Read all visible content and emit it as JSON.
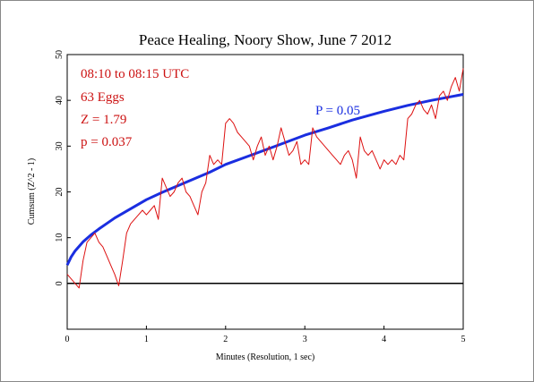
{
  "chart_data": {
    "type": "line",
    "title": "Peace Healing, Noory Show, June 7 2012",
    "xlabel": "Minutes (Resolution, 1 sec)",
    "ylabel": "Cumsum (Z^2 - 1)",
    "xlim": [
      0,
      5
    ],
    "ylim": [
      -10,
      50
    ],
    "xticks": [
      0,
      1,
      2,
      3,
      4,
      5
    ],
    "xtick_labels": [
      "0",
      "1",
      "2",
      "3",
      "4",
      "5"
    ],
    "yticks": [
      0,
      10,
      20,
      30,
      40,
      50
    ],
    "ytick_labels": [
      "0",
      "10",
      "20",
      "30",
      "40",
      "50"
    ],
    "grid": false,
    "annotations": [
      {
        "text": "08:10 to 08:15 UTC"
      },
      {
        "text": "63 Eggs"
      },
      {
        "text": "Z = 1.79"
      },
      {
        "text": "p = 0.037"
      }
    ],
    "colors": {
      "cumsum": "#dd1111",
      "envelope": "#1a2ee0",
      "baseline": "#000000",
      "annotation_text": "#cc1111"
    },
    "series": [
      {
        "name": "",
        "role": "cumsum",
        "x": [
          0,
          0.05,
          0.1,
          0.15,
          0.2,
          0.25,
          0.3,
          0.35,
          0.4,
          0.45,
          0.5,
          0.55,
          0.6,
          0.65,
          0.7,
          0.75,
          0.8,
          0.85,
          0.9,
          0.95,
          1.0,
          1.05,
          1.1,
          1.15,
          1.2,
          1.25,
          1.3,
          1.35,
          1.4,
          1.45,
          1.5,
          1.55,
          1.6,
          1.65,
          1.7,
          1.75,
          1.8,
          1.85,
          1.9,
          1.95,
          2.0,
          2.05,
          2.1,
          2.15,
          2.2,
          2.25,
          2.3,
          2.35,
          2.4,
          2.45,
          2.5,
          2.55,
          2.6,
          2.65,
          2.7,
          2.75,
          2.8,
          2.85,
          2.9,
          2.95,
          3.0,
          3.05,
          3.1,
          3.15,
          3.2,
          3.25,
          3.3,
          3.35,
          3.4,
          3.45,
          3.5,
          3.55,
          3.6,
          3.65,
          3.7,
          3.75,
          3.8,
          3.85,
          3.9,
          3.95,
          4.0,
          4.05,
          4.1,
          4.15,
          4.2,
          4.25,
          4.3,
          4.35,
          4.4,
          4.45,
          4.5,
          4.55,
          4.6,
          4.65,
          4.7,
          4.75,
          4.8,
          4.85,
          4.9,
          4.95,
          5.0
        ],
        "values": [
          2,
          1,
          0,
          -1,
          5,
          9,
          10,
          11,
          9,
          8,
          6,
          4,
          2,
          -0.5,
          5,
          11,
          13,
          14,
          15,
          16,
          15,
          16,
          17,
          14,
          23,
          21,
          19,
          20,
          22,
          23,
          20,
          19,
          17,
          15,
          20,
          22,
          28,
          26,
          27,
          26,
          35,
          36,
          35,
          33,
          32,
          31,
          30,
          27,
          30,
          32,
          28,
          30,
          27,
          30,
          34,
          31,
          28,
          29,
          31,
          26,
          27,
          26,
          34,
          32,
          31,
          30,
          29,
          28,
          27,
          26,
          28,
          29,
          27,
          23,
          32,
          29,
          28,
          29,
          27,
          25,
          27,
          26,
          27,
          26,
          28,
          27,
          36,
          37,
          39,
          40,
          38,
          37,
          39,
          36,
          41,
          42,
          40,
          43,
          45,
          42,
          47
        ]
      },
      {
        "name": "P = 0.05",
        "role": "envelope",
        "x": [
          0,
          0.05,
          0.1,
          0.15,
          0.2,
          0.3,
          0.4,
          0.5,
          0.6,
          0.8,
          1.0,
          1.2,
          1.5,
          1.8,
          2.0,
          2.3,
          2.6,
          3.0,
          3.3,
          3.6,
          4.0,
          4.3,
          4.6,
          5.0
        ],
        "values": [
          4.0,
          5.8,
          7.1,
          8.1,
          9.1,
          10.6,
          11.9,
          13.1,
          14.3,
          16.3,
          18.3,
          19.9,
          22.1,
          24.3,
          26.0,
          27.9,
          29.8,
          32.4,
          34.0,
          35.7,
          37.6,
          38.9,
          40.0,
          41.3
        ]
      },
      {
        "name": "",
        "role": "baseline",
        "x": [
          0,
          5
        ],
        "values": [
          0,
          0
        ]
      }
    ]
  }
}
